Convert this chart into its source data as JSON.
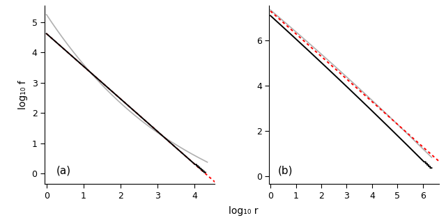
{
  "panel_a": {
    "label": "(a)",
    "xlim": [
      -0.05,
      4.55
    ],
    "ylim": [
      -0.35,
      5.55
    ],
    "xticks": [
      0,
      1,
      2,
      3,
      4
    ],
    "yticks": [
      0,
      1,
      2,
      3,
      4,
      5
    ],
    "black_x0": 0.0,
    "black_y0": 4.62,
    "black_slope": -1.075,
    "black_xend": 4.3,
    "gray_y0": 5.25,
    "gray_xend": 4.35,
    "gray_c1": -1.85,
    "gray_c2": 0.22,
    "gray_c3": -0.012,
    "red_x0": 0.0,
    "red_y0": 4.62,
    "red_slope": -1.075,
    "red_xend": 4.62,
    "step_start": 4.02,
    "n_steps": 7
  },
  "panel_b": {
    "label": "(b)",
    "xlim": [
      -0.05,
      6.65
    ],
    "ylim": [
      -0.35,
      7.55
    ],
    "xticks": [
      0,
      1,
      2,
      3,
      4,
      5,
      6
    ],
    "yticks": [
      0,
      2,
      4,
      6
    ],
    "black_y0": 7.1,
    "black_c1": -1.02,
    "black_c2": -0.008,
    "black_c3": 0.0,
    "black_xend": 6.35,
    "gray_y0": 7.35,
    "gray_c1": -0.95,
    "gray_c2": -0.012,
    "gray_c3": 0.0,
    "gray_xend": 6.35,
    "red_y0": 7.3,
    "red_slope": -1.0,
    "red_xend": 6.65,
    "step_start": 6.05,
    "n_steps": 5
  },
  "ylabel": "log₁₀ f",
  "xlabel": "log₁₀ r",
  "gray_color": "#b0b0b0",
  "black_color": "#000000",
  "red_color": "#ff0000",
  "bg_color": "#ffffff",
  "linewidth_gray": 1.2,
  "linewidth_black": 1.4,
  "linewidth_red": 1.4,
  "label_fontsize": 10,
  "tick_fontsize": 9,
  "panel_label_fontsize": 11
}
